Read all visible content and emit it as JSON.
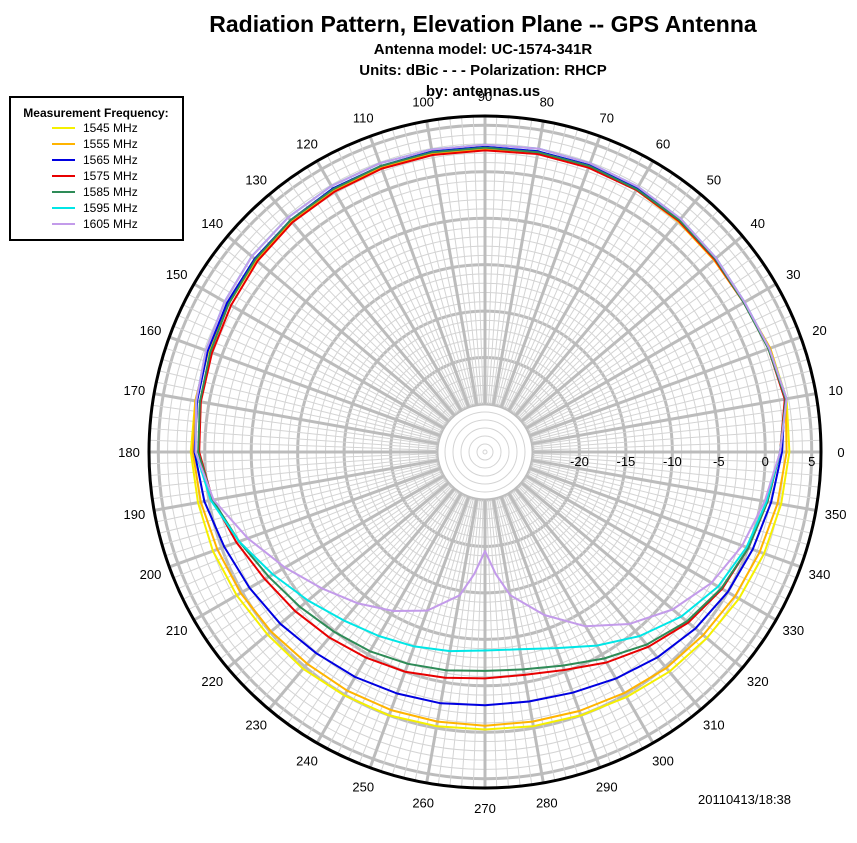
{
  "chart_data": {
    "type": "polar-line",
    "title": "Radiation Pattern, Elevation Plane -- GPS Antenna",
    "subtitles": [
      "Antenna model: UC-1574-341R",
      "Units: dBic - - - Polarization: RHCP",
      "by: antennas.us"
    ],
    "timestamp": "20110413/18:38",
    "legend": {
      "title": "Measurement Frequency:",
      "placement": "top-left"
    },
    "angle_unit": "degrees",
    "angle_ticks": [
      0,
      10,
      20,
      30,
      40,
      50,
      60,
      70,
      80,
      90,
      100,
      110,
      120,
      130,
      140,
      150,
      160,
      170,
      180,
      190,
      200,
      210,
      220,
      230,
      240,
      250,
      260,
      270,
      280,
      290,
      300,
      310,
      320,
      330,
      340,
      350
    ],
    "radial_ticks": [
      -20,
      -15,
      -10,
      -5,
      0,
      5
    ],
    "radial_range": [
      -25,
      6
    ],
    "grid": true,
    "series": [
      {
        "name": "1545 MHz",
        "color": "#f5f000",
        "points": [
          [
            10,
            2.8
          ],
          [
            20,
            2.5
          ],
          [
            30,
            2
          ],
          [
            40,
            2.2
          ],
          [
            50,
            2.4
          ],
          [
            60,
            2.5
          ],
          [
            70,
            2.5
          ],
          [
            80,
            2.5
          ],
          [
            90,
            2.4
          ],
          [
            100,
            2.4
          ],
          [
            110,
            2.4
          ],
          [
            120,
            2.4
          ],
          [
            130,
            2.3
          ],
          [
            140,
            2
          ],
          [
            150,
            1.7
          ],
          [
            160,
            1.5
          ],
          [
            170,
            1.5
          ],
          [
            180,
            1.5
          ],
          [
            190,
            1.2
          ],
          [
            200,
            1
          ],
          [
            210,
            0.7
          ],
          [
            220,
            0.4
          ],
          [
            230,
            0.3
          ],
          [
            240,
            0.1
          ],
          [
            250,
            0
          ],
          [
            260,
            -0.2
          ],
          [
            270,
            -0.3
          ],
          [
            280,
            -0.2
          ],
          [
            290,
            0
          ],
          [
            300,
            0.3
          ],
          [
            310,
            0.7
          ],
          [
            320,
            1
          ],
          [
            330,
            1.4
          ],
          [
            340,
            1.8
          ],
          [
            350,
            2.2
          ],
          [
            360,
            2.6
          ],
          [
            370,
            2.8
          ]
        ]
      },
      {
        "name": "1555 MHz",
        "color": "#ffb400",
        "points": [
          [
            10,
            2.7
          ],
          [
            20,
            2.5
          ],
          [
            30,
            2
          ],
          [
            40,
            2
          ],
          [
            50,
            2.2
          ],
          [
            60,
            2.4
          ],
          [
            70,
            2.5
          ],
          [
            80,
            2.5
          ],
          [
            90,
            2.4
          ],
          [
            100,
            2.4
          ],
          [
            110,
            2.4
          ],
          [
            120,
            2.4
          ],
          [
            130,
            2.3
          ],
          [
            140,
            2
          ],
          [
            150,
            1.8
          ],
          [
            160,
            1.6
          ],
          [
            170,
            1.5
          ],
          [
            180,
            1.3
          ],
          [
            190,
            0.9
          ],
          [
            200,
            0.5
          ],
          [
            210,
            0.2
          ],
          [
            220,
            -0.1
          ],
          [
            230,
            -0.4
          ],
          [
            240,
            -0.5
          ],
          [
            250,
            -0.6
          ],
          [
            260,
            -0.7
          ],
          [
            270,
            -0.7
          ],
          [
            280,
            -0.7
          ],
          [
            290,
            -0.5
          ],
          [
            300,
            -0.2
          ],
          [
            310,
            0.2
          ],
          [
            320,
            0.5
          ],
          [
            330,
            0.9
          ],
          [
            340,
            1.3
          ],
          [
            350,
            1.8
          ],
          [
            360,
            2.3
          ],
          [
            370,
            2.7
          ]
        ]
      },
      {
        "name": "1565 MHz",
        "color": "#0000e0",
        "points": [
          [
            10,
            2.6
          ],
          [
            20,
            2.4
          ],
          [
            30,
            2
          ],
          [
            40,
            2.3
          ],
          [
            50,
            2.5
          ],
          [
            60,
            2.6
          ],
          [
            70,
            2.7
          ],
          [
            80,
            2.7
          ],
          [
            90,
            2.7
          ],
          [
            100,
            2.7
          ],
          [
            110,
            2.6
          ],
          [
            120,
            2.6
          ],
          [
            130,
            2.4
          ],
          [
            140,
            2.2
          ],
          [
            150,
            1.9
          ],
          [
            160,
            1.6
          ],
          [
            170,
            1.3
          ],
          [
            180,
            1.1
          ],
          [
            190,
            0.5
          ],
          [
            200,
            -0.3
          ],
          [
            210,
            -0.9
          ],
          [
            220,
            -1.4
          ],
          [
            230,
            -1.9
          ],
          [
            240,
            -2.2
          ],
          [
            250,
            -2.5
          ],
          [
            260,
            -2.7
          ],
          [
            270,
            -2.9
          ],
          [
            280,
            -2.9
          ],
          [
            290,
            -2.6
          ],
          [
            300,
            -2
          ],
          [
            310,
            -1.3
          ],
          [
            320,
            -0.6
          ],
          [
            330,
            0
          ],
          [
            340,
            0.5
          ],
          [
            350,
            1.1
          ],
          [
            360,
            1.8
          ],
          [
            370,
            2.6
          ]
        ]
      },
      {
        "name": "1575 MHz",
        "color": "#e80000",
        "points": [
          [
            10,
            2.6
          ],
          [
            20,
            2.3
          ],
          [
            30,
            2
          ],
          [
            40,
            2.1
          ],
          [
            50,
            2.3
          ],
          [
            60,
            2.4
          ],
          [
            70,
            2.4
          ],
          [
            80,
            2.4
          ],
          [
            90,
            2.3
          ],
          [
            100,
            2.3
          ],
          [
            110,
            2.3
          ],
          [
            120,
            2.2
          ],
          [
            130,
            2.1
          ],
          [
            140,
            1.8
          ],
          [
            150,
            1.4
          ],
          [
            160,
            1.1
          ],
          [
            170,
            0.9
          ],
          [
            180,
            0.6
          ],
          [
            190,
            -0.4
          ],
          [
            200,
            -1.7
          ],
          [
            210,
            -2.8
          ],
          [
            220,
            -3.5
          ],
          [
            230,
            -4.1
          ],
          [
            240,
            -4.6
          ],
          [
            250,
            -5
          ],
          [
            260,
            -5.5
          ],
          [
            270,
            -5.8
          ],
          [
            280,
            -5.8
          ],
          [
            290,
            -5.2
          ],
          [
            300,
            -4
          ],
          [
            310,
            -2.8
          ],
          [
            320,
            -1.6
          ],
          [
            330,
            -0.7
          ],
          [
            340,
            0
          ],
          [
            350,
            0.7
          ],
          [
            360,
            1.6
          ],
          [
            370,
            2.6
          ]
        ]
      },
      {
        "name": "1585 MHz",
        "color": "#2e8b57",
        "points": [
          [
            10,
            2.7
          ],
          [
            20,
            2.3
          ],
          [
            30,
            2
          ],
          [
            40,
            2.2
          ],
          [
            50,
            2.4
          ],
          [
            60,
            2.5
          ],
          [
            70,
            2.6
          ],
          [
            80,
            2.6
          ],
          [
            90,
            2.6
          ],
          [
            100,
            2.6
          ],
          [
            110,
            2.6
          ],
          [
            120,
            2.5
          ],
          [
            130,
            2.4
          ],
          [
            140,
            2.1
          ],
          [
            150,
            1.7
          ],
          [
            160,
            1.3
          ],
          [
            170,
            1
          ],
          [
            180,
            0.7
          ],
          [
            190,
            -0.4
          ],
          [
            200,
            -2
          ],
          [
            210,
            -3.3
          ],
          [
            220,
            -4.2
          ],
          [
            230,
            -4.9
          ],
          [
            240,
            -5.4
          ],
          [
            250,
            -5.9
          ],
          [
            260,
            -6.3
          ],
          [
            270,
            -6.6
          ],
          [
            280,
            -6.4
          ],
          [
            290,
            -5.7
          ],
          [
            300,
            -4.5
          ],
          [
            310,
            -3.1
          ],
          [
            320,
            -1.8
          ],
          [
            330,
            -0.8
          ],
          [
            340,
            0
          ],
          [
            350,
            0.7
          ],
          [
            360,
            1.6
          ],
          [
            370,
            2.7
          ]
        ]
      },
      {
        "name": "1595 MHz",
        "color": "#00e6e6",
        "points": [
          [
            10,
            2.8
          ],
          [
            20,
            2.4
          ],
          [
            30,
            2.1
          ],
          [
            40,
            2.3
          ],
          [
            50,
            2.6
          ],
          [
            60,
            2.8
          ],
          [
            70,
            2.9
          ],
          [
            80,
            3
          ],
          [
            90,
            2.9
          ],
          [
            100,
            2.9
          ],
          [
            110,
            2.9
          ],
          [
            120,
            2.9
          ],
          [
            130,
            2.8
          ],
          [
            140,
            2.6
          ],
          [
            150,
            2.2
          ],
          [
            160,
            1.8
          ],
          [
            170,
            1.4
          ],
          [
            180,
            1
          ],
          [
            190,
            -0.2
          ],
          [
            200,
            -2
          ],
          [
            210,
            -3.8
          ],
          [
            220,
            -5.3
          ],
          [
            230,
            -6.5
          ],
          [
            240,
            -7.3
          ],
          [
            250,
            -7.9
          ],
          [
            260,
            -8.4
          ],
          [
            270,
            -8.8
          ],
          [
            280,
            -8.6
          ],
          [
            290,
            -7.7
          ],
          [
            300,
            -6.1
          ],
          [
            310,
            -4.3
          ],
          [
            320,
            -2.6
          ],
          [
            330,
            -1.2
          ],
          [
            340,
            -0.2
          ],
          [
            350,
            0.6
          ],
          [
            360,
            1.6
          ],
          [
            370,
            2.8
          ]
        ]
      },
      {
        "name": "1605 MHz",
        "color": "#c39bea",
        "points": [
          [
            10,
            2.8
          ],
          [
            20,
            2.4
          ],
          [
            30,
            2.1
          ],
          [
            40,
            2.3
          ],
          [
            50,
            2.6
          ],
          [
            60,
            2.8
          ],
          [
            70,
            2.9
          ],
          [
            80,
            3
          ],
          [
            90,
            2.9
          ],
          [
            100,
            2.9
          ],
          [
            110,
            2.9
          ],
          [
            120,
            2.9
          ],
          [
            130,
            2.8
          ],
          [
            140,
            2.6
          ],
          [
            150,
            2.2
          ],
          [
            160,
            1.8
          ],
          [
            170,
            1.4
          ],
          [
            180,
            1
          ],
          [
            190,
            -0.5
          ],
          [
            200,
            -3
          ],
          [
            210,
            -5.3
          ],
          [
            220,
            -7.3
          ],
          [
            230,
            -8.9
          ],
          [
            240,
            -10.4
          ],
          [
            250,
            -12
          ],
          [
            260,
            -14.5
          ],
          [
            265,
            -17
          ],
          [
            270,
            -19.5
          ],
          [
            275,
            -17
          ],
          [
            280,
            -14.5
          ],
          [
            290,
            -11.5
          ],
          [
            300,
            -8.5
          ],
          [
            310,
            -6
          ],
          [
            320,
            -3.8
          ],
          [
            330,
            -2
          ],
          [
            340,
            -0.7
          ],
          [
            350,
            0.4
          ],
          [
            360,
            1.6
          ],
          [
            370,
            2.8
          ]
        ]
      }
    ]
  }
}
